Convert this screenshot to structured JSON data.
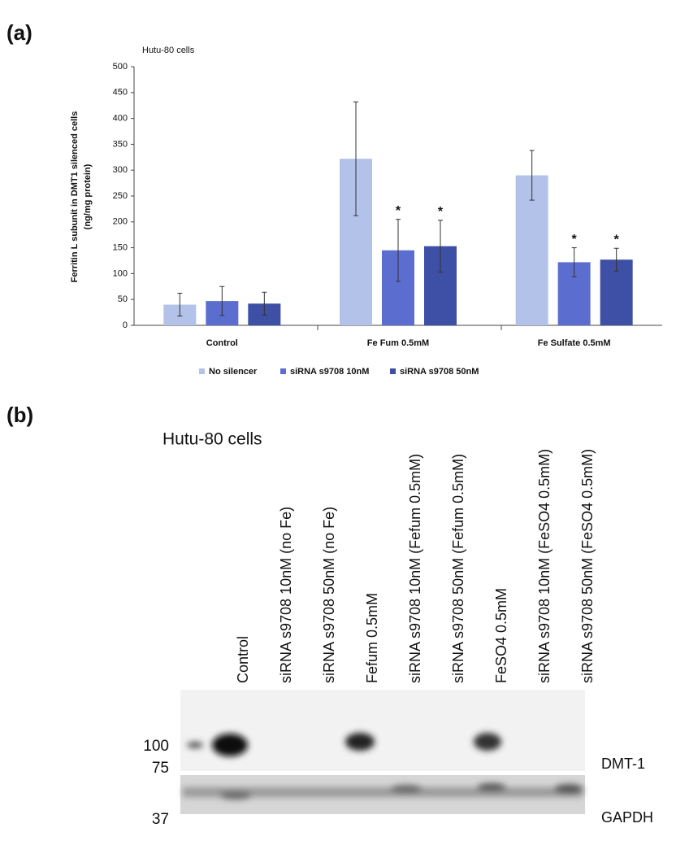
{
  "panel_a": "(a)",
  "chart_data": {
    "type": "bar",
    "title": "Hutu-80 cells",
    "ylabel": [
      "Ferritin L subunit in DMT1 silenced cells",
      "(ng/mg protein)"
    ],
    "categories": [
      "Control",
      "Fe Fum 0.5mM",
      "Fe Sulfate 0.5mM"
    ],
    "series": [
      {
        "name": "No silencer",
        "color": "#b3c2e8",
        "values": [
          40,
          322,
          290
        ],
        "errors": [
          22,
          110,
          48
        ],
        "significance": [
          null,
          null,
          null
        ]
      },
      {
        "name": "siRNA s9708 10nM",
        "color": "#5b6ecf",
        "values": [
          47,
          145,
          122
        ],
        "errors": [
          28,
          60,
          28
        ],
        "significance": [
          null,
          "*",
          "*"
        ]
      },
      {
        "name": "siRNA s9708 50nM",
        "color": "#3e4fa6",
        "values": [
          42,
          153,
          127
        ],
        "errors": [
          22,
          50,
          22
        ],
        "significance": [
          null,
          "*",
          "*"
        ]
      }
    ],
    "ylim": [
      0,
      500
    ],
    "yticks": [
      0,
      50,
      100,
      150,
      200,
      250,
      300,
      350,
      400,
      450,
      500
    ],
    "grid": false,
    "legend": "bottom"
  },
  "panel_b": {
    "label": "(b)",
    "title": "Hutu-80 cells",
    "lanes": [
      "Control",
      "siRNA s9708 10nM (no Fe)",
      "siRNA s9708 50nM (no Fe)",
      "Fefum 0.5mM",
      "siRNA s9708 10nM (Fefum 0.5mM)",
      "siRNA s9708 50nM (Fefum 0.5mM)",
      "FeSO4 0.5mM",
      "siRNA s9708 10nM (FeSO4 0.5mM)",
      "siRNA s9708 50nM (FeSO4 0.5mM)"
    ],
    "mw_markers": [
      "100",
      "75",
      "37"
    ],
    "bands": [
      "DMT-1",
      "GAPDH"
    ]
  }
}
